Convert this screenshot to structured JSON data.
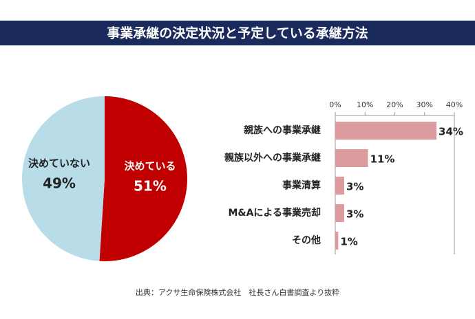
{
  "title": "事業承継の決定状況と予定している承継方法",
  "source": "出典：アクサ生命保険株式会社　社長さん白書調査より抜粋",
  "chart_data": [
    {
      "type": "pie",
      "categories": [
        "決めている",
        "決めていない"
      ],
      "values": [
        51,
        49
      ],
      "value_labels": [
        "51%",
        "49%"
      ],
      "colors": [
        "#c00000",
        "#b8dce8"
      ],
      "label_colors": [
        "#ffffff",
        "#222222"
      ]
    },
    {
      "type": "hbar",
      "categories": [
        "親族への事業承継",
        "親族以外への事業承継",
        "事業清算",
        "M&Aによる事業売却",
        "その他"
      ],
      "values": [
        34,
        11,
        3,
        3,
        1
      ],
      "value_labels": [
        "34%",
        "11%",
        "3%",
        "3%",
        "1%"
      ],
      "color": "#dc9c9f",
      "xlim": [
        0,
        40
      ],
      "xticks": [
        {
          "value": 0,
          "label": "0%"
        },
        {
          "value": 10,
          "label": "10%"
        },
        {
          "value": 20,
          "label": "20%"
        },
        {
          "value": 30,
          "label": "30%"
        },
        {
          "value": 40,
          "label": "40%"
        }
      ]
    }
  ]
}
